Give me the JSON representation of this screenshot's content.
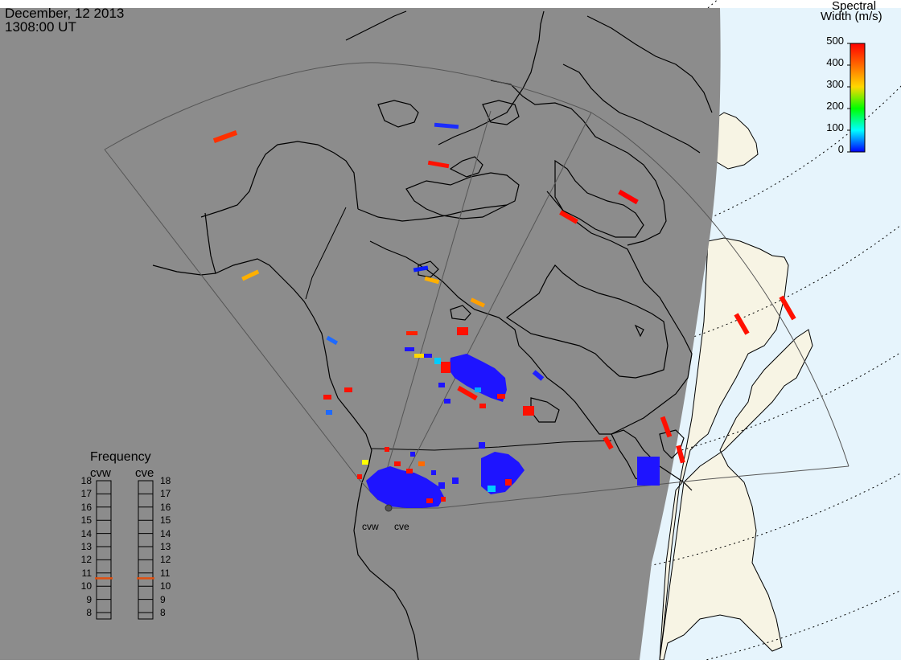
{
  "header": {
    "date": "December, 12 2013",
    "time": "1308:00 UT"
  },
  "colorbar": {
    "title_line1": "Spectral",
    "title_line2": "Width (m/s)",
    "ticks": [
      "500",
      "400",
      "300",
      "200",
      "100",
      "0"
    ],
    "stops": [
      "#ff0000",
      "#ff6a00",
      "#ffd800",
      "#00ff00",
      "#00ffff",
      "#0000ff"
    ]
  },
  "frequency": {
    "title": "Frequency",
    "radars": [
      "cvw",
      "cve"
    ],
    "scale": [
      "18",
      "17",
      "16",
      "15",
      "14",
      "13",
      "12",
      "11",
      "10",
      "9",
      "8"
    ],
    "selected_mhz": {
      "cvw": 10.6,
      "cve": 10.6
    }
  },
  "sites": {
    "cvw": "cvw",
    "cve": "cve"
  },
  "colors": {
    "night": "#8c8c8c",
    "day_land": "#f7f4e4",
    "day_ocean": "#e6f4fc",
    "coast": "#000000",
    "fov": "#444444",
    "frequency_marker": "#e05010"
  }
}
